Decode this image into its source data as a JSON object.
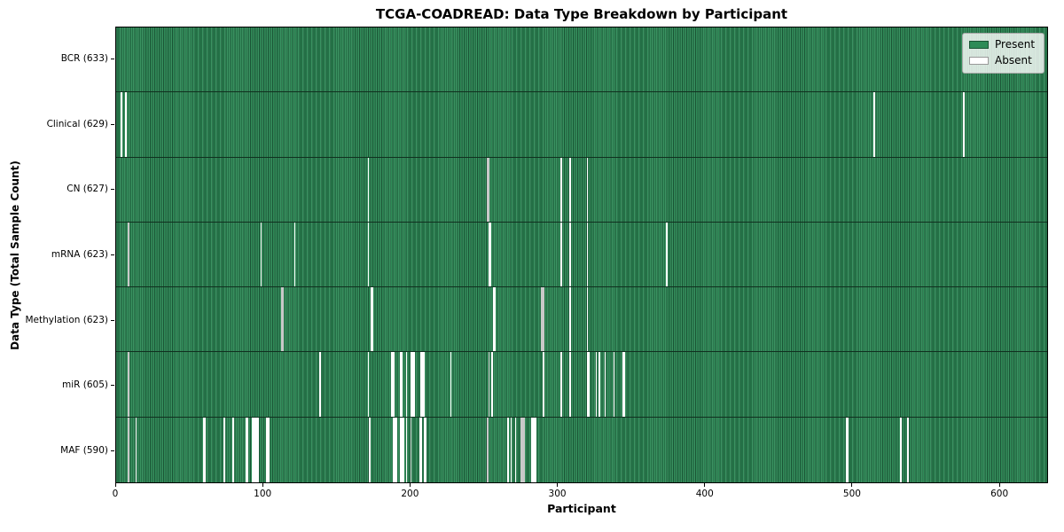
{
  "figure": {
    "title": "TCGA-COADREAD: Data Type Breakdown by Participant",
    "xlabel": "Participant",
    "ylabel": "Data Type (Total Sample Count)"
  },
  "legend": {
    "items": [
      {
        "name": "present",
        "label": "Present",
        "color": "#2E8B57"
      },
      {
        "name": "absent",
        "label": "Absent",
        "color": "#FFFFFF"
      }
    ]
  },
  "colors": {
    "present": "#2E8B57",
    "absent": "#FFFFFF",
    "absent_faint": "#C9C9C9",
    "legend_bg": "rgba(255,255,255,0.8)",
    "legend_border": "#A8A8A8"
  },
  "chart_data": {
    "type": "heatmap",
    "title": "TCGA-COADREAD: Data Type Breakdown by Participant",
    "xlabel": "Participant",
    "ylabel": "Data Type (Total Sample Count)",
    "legend_entries": [
      "Present",
      "Absent"
    ],
    "legend_position": "upper right",
    "grid": false,
    "x_range": [
      0,
      633
    ],
    "x_ticks": [
      0,
      100,
      200,
      300,
      400,
      500,
      600
    ],
    "total_participants": 633,
    "rows": [
      {
        "name": "BCR",
        "label": "BCR (633)",
        "present_count": 633,
        "absent_participants": [],
        "faint": []
      },
      {
        "name": "Clinical",
        "label": "Clinical (629)",
        "present_count": 629,
        "absent_participants": [
          3,
          6,
          515,
          576
        ],
        "faint": []
      },
      {
        "name": "CN",
        "label": "CN (627)",
        "present_count": 627,
        "absent_participants": [
          171,
          252,
          253,
          302,
          308,
          320
        ],
        "faint": [
          252,
          253
        ]
      },
      {
        "name": "mRNA",
        "label": "mRNA (623)",
        "present_count": 623,
        "absent_participants": [
          8,
          98,
          121,
          171,
          253,
          254,
          302,
          308,
          320,
          374
        ],
        "faint": [
          8
        ]
      },
      {
        "name": "Methylation",
        "label": "Methylation (623)",
        "present_count": 623,
        "absent_participants": [
          112,
          113,
          173,
          174,
          256,
          257,
          289,
          290,
          308,
          320
        ],
        "faint": [
          112,
          113,
          289,
          290
        ]
      },
      {
        "name": "miR",
        "label": "miR (605)",
        "present_count": 605,
        "absent_participants": [
          8,
          138,
          171,
          187,
          188,
          193,
          194,
          197,
          200,
          201,
          202,
          207,
          208,
          209,
          227,
          253,
          255,
          290,
          302,
          308,
          320,
          321,
          326,
          328,
          332,
          338,
          344,
          345
        ],
        "faint": [
          8,
          253
        ]
      },
      {
        "name": "MAF",
        "label": "MAF (590)",
        "present_count": 590,
        "absent_participants": [
          8,
          13,
          59,
          60,
          73,
          79,
          88,
          89,
          92,
          93,
          94,
          95,
          96,
          102,
          103,
          172,
          188,
          189,
          190,
          193,
          194,
          195,
          197,
          200,
          206,
          207,
          209,
          210,
          252,
          266,
          268,
          271,
          275,
          276,
          277,
          282,
          283,
          284,
          285,
          496,
          497,
          533,
          538
        ],
        "faint": [
          8,
          200,
          252,
          275,
          276,
          277
        ]
      }
    ]
  }
}
